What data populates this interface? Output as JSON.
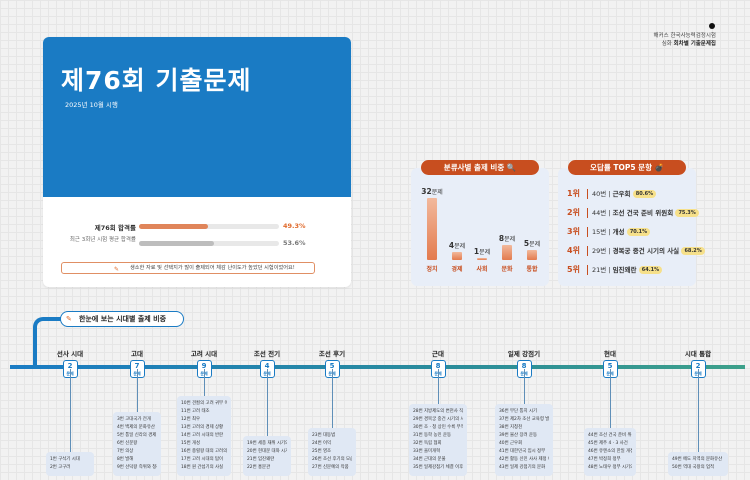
{
  "publisher": {
    "line1": "해커스 한국사능력검정시험",
    "line2_prefix": "심화",
    "line2_bold": "회차별 기출문제집"
  },
  "card": {
    "title": "제76회 기출문제",
    "date": "2025년 10월 시행",
    "rates": [
      {
        "label": "제76회 합격률",
        "value": "49.3%",
        "fraction": 0.493,
        "color": "#e0855a"
      },
      {
        "label": "최근 3회년 시험 평균 합격률",
        "value": "53.6%",
        "fraction": 0.536,
        "color": "#bdbdbd"
      }
    ],
    "note": "생소한 자료 및 선택지가 많이 출제되어 체감 난이도가 높았던 시험이었어요!"
  },
  "category_chart": {
    "heading": "분류사별 출제 비중",
    "unit": "문제",
    "chart_data": {
      "type": "bar",
      "categories": [
        "정치",
        "경제",
        "사회",
        "문화",
        "통합"
      ],
      "values": [
        32,
        4,
        1,
        8,
        5
      ],
      "ylim": [
        0,
        32
      ]
    }
  },
  "top5": {
    "heading": "오답률 TOP5 문항",
    "items": [
      {
        "rank": "1위",
        "num": "40번",
        "topic": "근우회",
        "pct": "80.6%"
      },
      {
        "rank": "2위",
        "num": "44번",
        "topic": "조선 건국 준비 위원회",
        "pct": "75.3%"
      },
      {
        "rank": "3위",
        "num": "15번",
        "topic": "개성",
        "pct": "70.1%"
      },
      {
        "rank": "4위",
        "num": "29번",
        "topic": "경복궁 중건 시기의 사실",
        "pct": "68.2%"
      },
      {
        "rank": "5위",
        "num": "21번",
        "topic": "임진왜란",
        "pct": "64.1%"
      }
    ]
  },
  "timeline": {
    "heading": "한눈에 보는 시대별 출제 비중",
    "unit": "문제",
    "eras": [
      {
        "name": "선사 시대",
        "count": "2",
        "topics": [
          "1번 구석기 시대",
          "2번 고구려"
        ]
      },
      {
        "name": "고대",
        "count": "7",
        "topics": [
          "3번 고대국가 전개",
          "4번 백제의 문화유산",
          "5번 통일 신라의 경제 상황",
          "6번 신문왕",
          "7번 의상",
          "8번 발해",
          "9번 선덕왕 즉위와 청해진 해도시 단 시대의 사실"
        ]
      },
      {
        "name": "고려 시대",
        "count": "9",
        "topics": [
          "10번 견훤의 고려 귀부 이후의 사실",
          "11번 고려 태조",
          "12번 최우",
          "13번 고려의 경제 상황",
          "14번 고려 시대의 반란",
          "15번 개성",
          "16번 충렬왕 대의 고려의 사실",
          "17번 고려 시대의 탑이",
          "18번 원 간섭기의 사실"
        ]
      },
      {
        "name": "조선 전기",
        "count": "4",
        "topics": [
          "19번 세종 재위 시기의 사실",
          "20번 현대문 대와 시기의 사실",
          "21번 임진왜란",
          "22번 홍문관"
        ]
      },
      {
        "name": "조선 후기",
        "count": "5",
        "topics": [
          "23번 대동법",
          "24번 이익",
          "25번 영조",
          "26번 조선 후기의 모습",
          "27번 신문예의 작품"
        ]
      },
      {
        "name": "근대",
        "count": "8",
        "topics": [
          "28번 지방제도의 변천사 직접 시기",
          "29번 경복궁 중건 시기의 사실",
          "30번 조 · 청 상민 수륙 무역 장정",
          "31번 동학 농민 운동",
          "32번 독립 협회",
          "33번 을미개혁",
          "34번 근대의 문물",
          "35번 일제강점기 체결 이후의 사실"
        ]
      },
      {
        "name": "일제 강점기",
        "count": "8",
        "topics": [
          "36번 무단 통치 시기",
          "37번 제2차 조선 교육령 발표 이후의 사실",
          "38번 지청천",
          "39번 물산 장려 운동",
          "40번 근우회",
          "41번 대한민국 임시 정부",
          "42번 활동 신민 사사 제정 이후의 사실",
          "43번 일제 강점기의 문화"
        ]
      },
      {
        "name": "현대",
        "count": "5",
        "topics": [
          "44번 조선 건국 준비 위원회",
          "45번 제주 4 · 3 사건",
          "46번 유엔소의 한일 개정의 역사",
          "47번 박정희 정부",
          "48번 노태우 정부 시기의 통일 노력"
        ]
      },
      {
        "name": "시대 통합",
        "count": "2",
        "topics": [
          "49번 에도 지역의 문화유산",
          "50번 역대 국왕의 업적"
        ]
      }
    ]
  }
}
